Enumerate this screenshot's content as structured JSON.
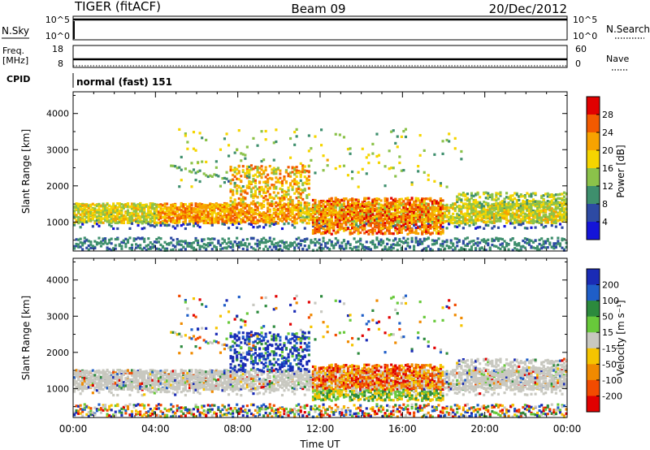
{
  "header": {
    "station": "TIGER (fitACF)",
    "beam": "Beam 09",
    "date": "20/Dec/2012"
  },
  "param_panels": {
    "nsky": {
      "left_label": "N.Sky",
      "left_ticks": [
        "10^5",
        "10^0"
      ],
      "right_label": "N.Search",
      "right_ticks": [
        "10^5",
        "10^0"
      ]
    },
    "freq": {
      "left_label_line1": "Freq.",
      "left_label_line2": "[MHz]",
      "left_ticks": [
        "18",
        "8"
      ],
      "right_label": "Nave",
      "right_ticks": [
        "60",
        "0"
      ]
    },
    "cpid": {
      "label": "CPID",
      "text": "normal (fast) 151"
    }
  },
  "chart_data": [
    {
      "type": "heatmap",
      "name": "power",
      "ylabel": "Slant Range [km]",
      "xlabel": "",
      "ylim": [
        200,
        4600
      ],
      "yticks": [
        1000,
        2000,
        3000,
        4000
      ],
      "colorbar": {
        "label": "Power [dB]",
        "ticks": [
          "28",
          "24",
          "20",
          "16",
          "12",
          "8",
          "4"
        ],
        "colors": [
          "#e10000",
          "#f25a00",
          "#f7a300",
          "#f5d500",
          "#8bc24a",
          "#3e8f6d",
          "#2d4aa3",
          "#1414d8"
        ]
      }
    },
    {
      "type": "heatmap",
      "name": "velocity",
      "ylabel": "Slant Range [km]",
      "xlabel": "Time UT",
      "ylim": [
        200,
        4600
      ],
      "yticks": [
        1000,
        2000,
        3000,
        4000
      ],
      "xticks": [
        "00:00",
        "04:00",
        "08:00",
        "12:00",
        "16:00",
        "20:00",
        "00:00"
      ],
      "colorbar": {
        "label": "Velocity [m s⁻¹]",
        "ticks": [
          "200",
          "100",
          "50",
          "15",
          "-15",
          "-50",
          "-100",
          "-200"
        ],
        "colors": [
          "#1a2bb5",
          "#1f5ec8",
          "#2c8a3d",
          "#68c93a",
          "#c8c8c0",
          "#f5c400",
          "#f08a00",
          "#f24b00",
          "#e10000"
        ]
      }
    }
  ]
}
